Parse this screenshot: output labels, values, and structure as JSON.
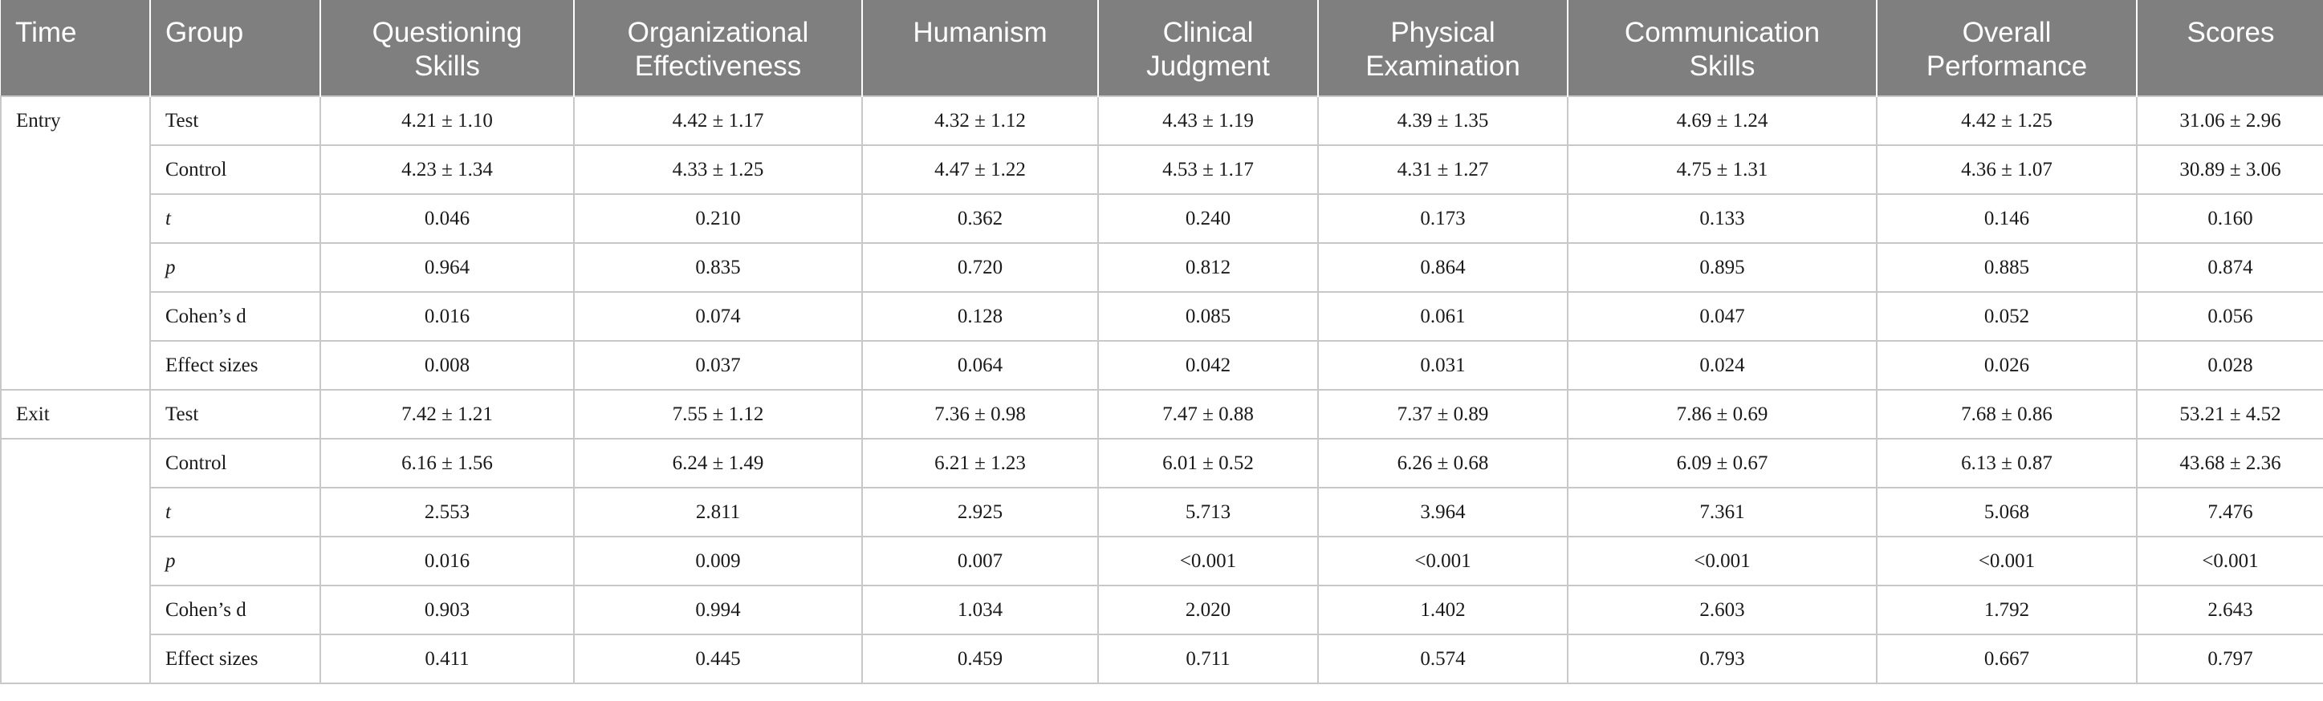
{
  "headers": [
    "Time",
    "Group",
    "Questioning Skills",
    "Organizational Effectiveness",
    "Humanism",
    "Clinical Judgment",
    "Physical Examination",
    "Communication Skills",
    "Overall Performance",
    "Scores"
  ],
  "header_lines": [
    [
      "Time",
      ""
    ],
    [
      "Group",
      ""
    ],
    [
      "Questioning",
      "Skills"
    ],
    [
      "Organizational",
      "Effectiveness"
    ],
    [
      "Humanism",
      ""
    ],
    [
      "Clinical",
      "Judgment"
    ],
    [
      "Physical",
      "Examination"
    ],
    [
      "Communication",
      "Skills"
    ],
    [
      "Overall",
      "Performance"
    ],
    [
      "Scores",
      ""
    ]
  ],
  "time_labels": [
    "Entry",
    "Exit"
  ],
  "rows": [
    {
      "group": "Test",
      "values": [
        "4.21 ± 1.10",
        "4.42 ± 1.17",
        "4.32 ± 1.12",
        "4.43 ± 1.19",
        "4.39 ± 1.35",
        "4.69 ± 1.24",
        "4.42 ± 1.25",
        "31.06 ± 2.96"
      ]
    },
    {
      "group": "Control",
      "values": [
        "4.23 ± 1.34",
        "4.33 ± 1.25",
        "4.47 ± 1.22",
        "4.53 ± 1.17",
        "4.31 ± 1.27",
        "4.75 ± 1.31",
        "4.36 ± 1.07",
        "30.89 ± 3.06"
      ]
    },
    {
      "group": "t",
      "values": [
        "0.046",
        "0.210",
        "0.362",
        "0.240",
        "0.173",
        "0.133",
        "0.146",
        "0.160"
      ]
    },
    {
      "group": "p",
      "values": [
        "0.964",
        "0.835",
        "0.720",
        "0.812",
        "0.864",
        "0.895",
        "0.885",
        "0.874"
      ]
    },
    {
      "group": "Cohen’s d",
      "values": [
        "0.016",
        "0.074",
        "0.128",
        "0.085",
        "0.061",
        "0.047",
        "0.052",
        "0.056"
      ]
    },
    {
      "group": "Effect sizes",
      "values": [
        "0.008",
        "0.037",
        "0.064",
        "0.042",
        "0.031",
        "0.024",
        "0.026",
        "0.028"
      ]
    },
    {
      "group": "Test",
      "values": [
        "7.42 ± 1.21",
        "7.55 ± 1.12",
        "7.36 ± 0.98",
        "7.47 ± 0.88",
        "7.37 ± 0.89",
        "7.86 ± 0.69",
        "7.68 ± 0.86",
        "53.21 ± 4.52"
      ]
    },
    {
      "group": "Control",
      "values": [
        "6.16 ± 1.56",
        "6.24 ± 1.49",
        "6.21 ± 1.23",
        "6.01 ± 0.52",
        "6.26 ± 0.68",
        "6.09 ± 0.67",
        "6.13 ± 0.87",
        "43.68 ± 2.36"
      ]
    },
    {
      "group": "t",
      "values": [
        "2.553",
        "2.811",
        "2.925",
        "5.713",
        "3.964",
        "7.361",
        "5.068",
        "7.476"
      ]
    },
    {
      "group": "p",
      "values": [
        "0.016",
        "0.009",
        "0.007",
        "<0.001",
        "<0.001",
        "<0.001",
        "<0.001",
        "<0.001"
      ]
    },
    {
      "group": "Cohen’s d",
      "values": [
        "0.903",
        "0.994",
        "1.034",
        "2.020",
        "1.402",
        "2.603",
        "1.792",
        "2.643"
      ]
    },
    {
      "group": "Effect sizes",
      "values": [
        "0.411",
        "0.445",
        "0.459",
        "0.711",
        "0.574",
        "0.793",
        "0.667",
        "0.797"
      ]
    }
  ]
}
